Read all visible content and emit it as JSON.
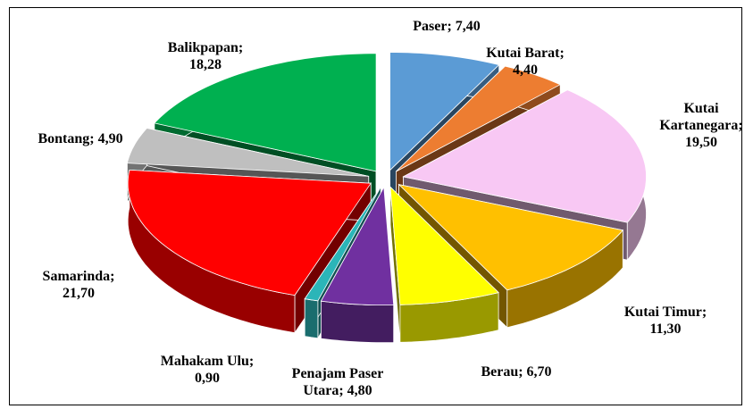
{
  "chart_data": {
    "type": "pie3d",
    "categories": [
      "Paser",
      "Kutai Barat",
      "Kutai Kartanegara",
      "Kutai Timur",
      "Berau",
      "Penajam Paser Utara",
      "Mahakam Ulu",
      "Samarinda",
      "Bontang",
      "Balikpapan"
    ],
    "values": [
      7.4,
      4.4,
      19.5,
      11.3,
      6.7,
      4.8,
      0.9,
      21.7,
      4.9,
      18.28
    ],
    "value_labels": [
      "7,40",
      "4,40",
      "19,50",
      "11,30",
      "6,70",
      "4,80",
      "0,90",
      "21,70",
      "4,90",
      "18,28"
    ],
    "label_separator": ";",
    "colors": [
      "#5b9bd5",
      "#ed7d31",
      "#f8c8f4",
      "#ffc000",
      "#ffff00",
      "#7030a0",
      "#2bb5b8",
      "#ff0000",
      "#bfbfbf",
      "#00b050"
    ]
  }
}
